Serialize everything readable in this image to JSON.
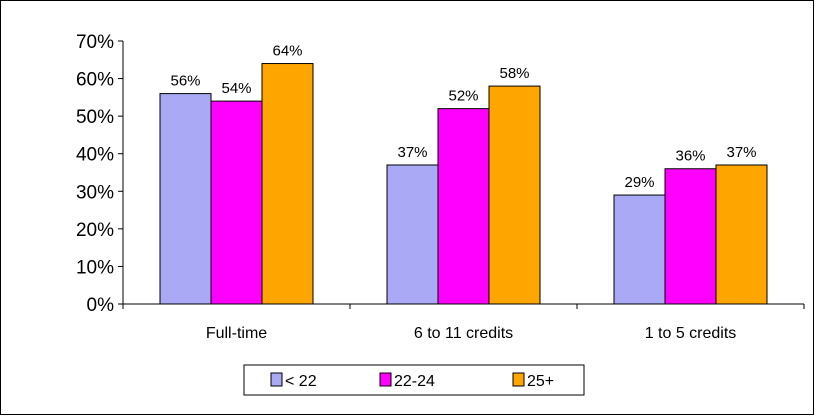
{
  "chart_data": {
    "type": "bar",
    "title": "",
    "xlabel": "",
    "ylabel": "",
    "categories": [
      "Full-time",
      "6 to 11 credits",
      "1 to 5 credits"
    ],
    "series": [
      {
        "name": "< 22",
        "color": "#A9A9F5",
        "values": [
          56,
          37,
          29
        ],
        "labels": [
          "56%",
          "37%",
          "29%"
        ]
      },
      {
        "name": "22-24",
        "color": "#FF00FF",
        "values": [
          54,
          52,
          36
        ],
        "labels": [
          "54%",
          "52%",
          "36%"
        ]
      },
      {
        "name": "25+",
        "color": "#FFA500",
        "values": [
          64,
          58,
          37
        ],
        "labels": [
          "64%",
          "58%",
          "37%"
        ]
      }
    ],
    "ylim": [
      0,
      70
    ],
    "yticks": [
      0,
      10,
      20,
      30,
      40,
      50,
      60,
      70
    ],
    "ytick_labels": [
      "0%",
      "10%",
      "20%",
      "30%",
      "40%",
      "50%",
      "60%",
      "70%"
    ],
    "grid": false,
    "legend_position": "bottom"
  }
}
